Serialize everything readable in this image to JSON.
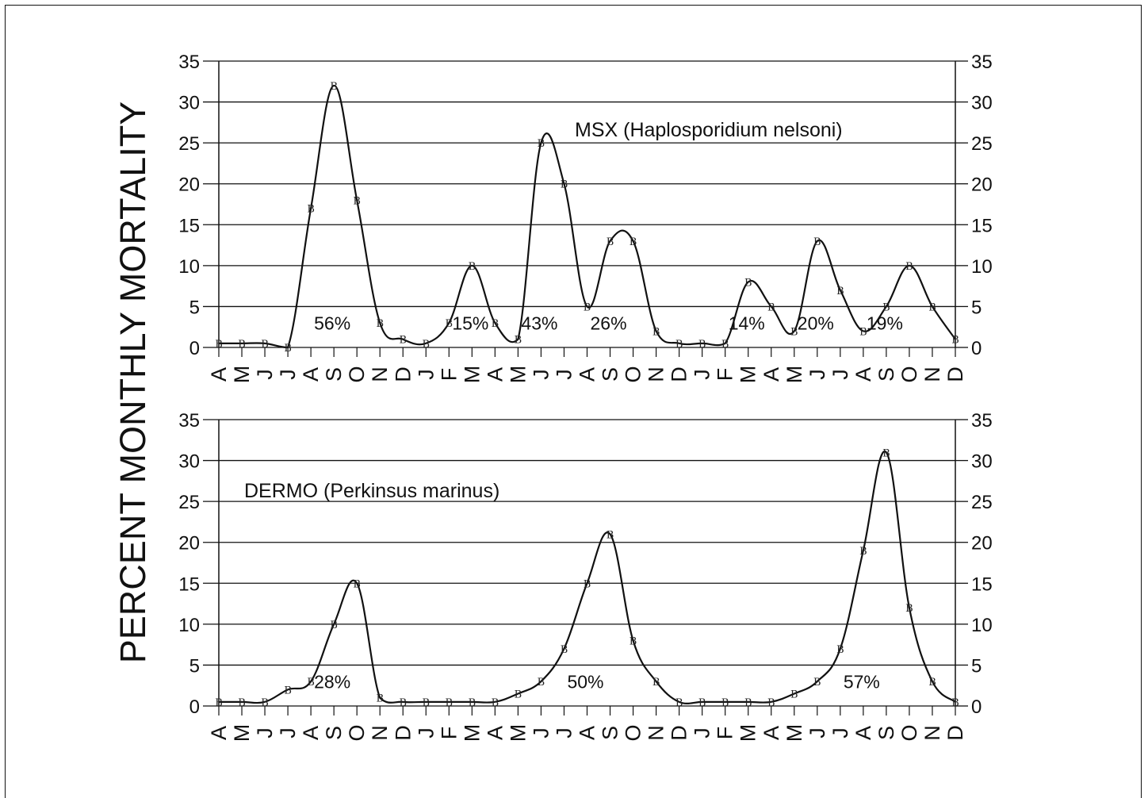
{
  "figure": {
    "ylabel": "PERCENT MONTHLY MORTALITY"
  },
  "chart_data": [
    {
      "type": "line",
      "title": "MSX (Haplosporidium nelsoni)",
      "ylim": [
        0,
        35
      ],
      "yticks": [
        0,
        5,
        10,
        15,
        20,
        25,
        30,
        35
      ],
      "categories": [
        "A",
        "M",
        "J",
        "J",
        "A",
        "S",
        "O",
        "N",
        "D",
        "J",
        "F",
        "M",
        "A",
        "M",
        "J",
        "J",
        "A",
        "S",
        "O",
        "N",
        "D",
        "J",
        "F",
        "M",
        "A",
        "M",
        "J",
        "J",
        "A",
        "S",
        "O",
        "N",
        "D"
      ],
      "values": [
        0.5,
        0.5,
        0.5,
        0,
        17,
        32,
        18,
        3,
        1,
        0.5,
        3,
        10,
        3,
        1,
        25,
        20,
        5,
        13,
        13,
        2,
        0.5,
        0.5,
        0.5,
        8,
        5,
        2,
        13,
        7,
        2,
        5,
        10,
        5,
        1
      ],
      "marker": "B",
      "annotations": [
        {
          "text": "56%",
          "x_index": 5,
          "y": 2
        },
        {
          "text": "15%",
          "x_index": 11,
          "y": 2
        },
        {
          "text": "43%",
          "x_index": 14,
          "y": 2
        },
        {
          "text": "26%",
          "x_index": 17,
          "y": 2
        },
        {
          "text": "14%",
          "x_index": 23,
          "y": 2
        },
        {
          "text": "20%",
          "x_index": 26,
          "y": 2
        },
        {
          "text": "19%",
          "x_index": 29,
          "y": 2
        }
      ],
      "grid": true
    },
    {
      "type": "line",
      "title": "DERMO (Perkinsus marinus)",
      "ylim": [
        0,
        35
      ],
      "yticks": [
        0,
        5,
        10,
        15,
        20,
        25,
        30,
        35
      ],
      "categories": [
        "A",
        "M",
        "J",
        "J",
        "A",
        "S",
        "O",
        "N",
        "D",
        "J",
        "F",
        "M",
        "A",
        "M",
        "J",
        "J",
        "A",
        "S",
        "O",
        "N",
        "D",
        "J",
        "F",
        "M",
        "A",
        "M",
        "J",
        "J",
        "A",
        "S",
        "O",
        "N",
        "D"
      ],
      "values": [
        0.5,
        0.5,
        0.5,
        2,
        3,
        10,
        15,
        1,
        0.5,
        0.5,
        0.5,
        0.5,
        0.5,
        1.5,
        3,
        7,
        15,
        21,
        8,
        3,
        0.5,
        0.5,
        0.5,
        0.5,
        0.5,
        1.5,
        3,
        7,
        19,
        31,
        12,
        3,
        0.5
      ],
      "marker": "B",
      "annotations": [
        {
          "text": "28%",
          "x_index": 5,
          "y": 2
        },
        {
          "text": "50%",
          "x_index": 16,
          "y": 2
        },
        {
          "text": "57%",
          "x_index": 28,
          "y": 2
        }
      ],
      "grid": true
    }
  ]
}
